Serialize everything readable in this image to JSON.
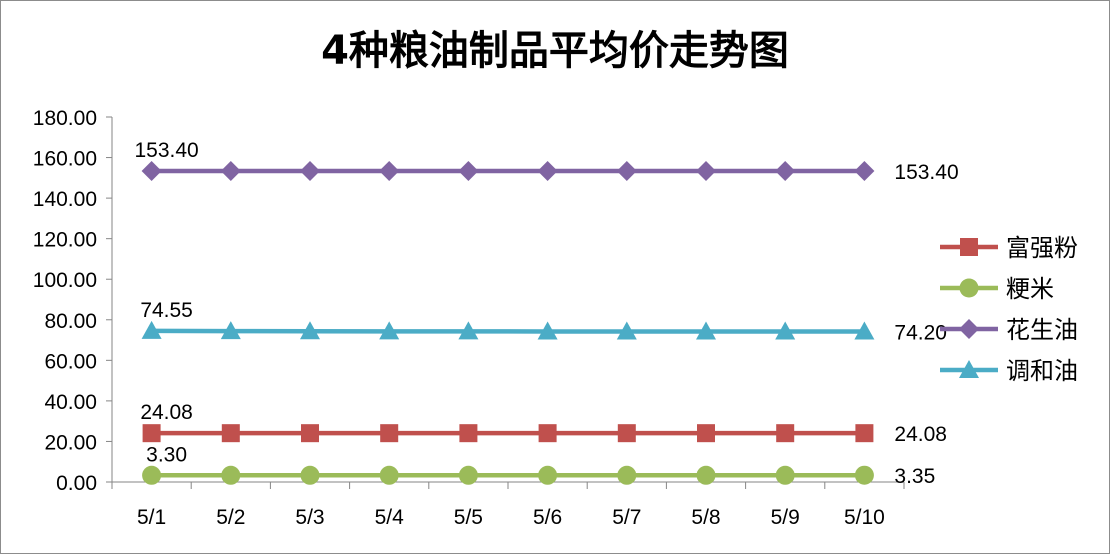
{
  "chart_data": {
    "type": "line",
    "title": "4种粮油制品平均价走势图",
    "categories": [
      "5/1",
      "5/2",
      "5/3",
      "5/4",
      "5/5",
      "5/6",
      "5/7",
      "5/8",
      "5/9",
      "5/10"
    ],
    "ylim": [
      0,
      180
    ],
    "yticks": [
      "0.00",
      "20.00",
      "40.00",
      "60.00",
      "80.00",
      "100.00",
      "120.00",
      "140.00",
      "160.00",
      "180.00"
    ],
    "grid": false,
    "legend_position": "right",
    "series": [
      {
        "name": "富强粉",
        "color": "#c0504d",
        "marker": "square",
        "values": [
          24.08,
          24.08,
          24.08,
          24.08,
          24.08,
          24.08,
          24.08,
          24.08,
          24.08,
          24.08
        ],
        "start_label": "24.08",
        "end_label": "24.08"
      },
      {
        "name": "粳米",
        "color": "#9bbb59",
        "marker": "circle",
        "values": [
          3.3,
          3.3,
          3.3,
          3.3,
          3.3,
          3.3,
          3.3,
          3.3,
          3.3,
          3.35
        ],
        "start_label": "3.30",
        "end_label": "3.35"
      },
      {
        "name": "花生油",
        "color": "#8064a2",
        "marker": "diamond",
        "values": [
          153.4,
          153.4,
          153.4,
          153.4,
          153.4,
          153.4,
          153.4,
          153.4,
          153.4,
          153.4
        ],
        "start_label": "153.40",
        "end_label": "153.40"
      },
      {
        "name": "调和油",
        "color": "#4bacc6",
        "marker": "triangle",
        "values": [
          74.55,
          74.4,
          74.35,
          74.3,
          74.3,
          74.25,
          74.25,
          74.2,
          74.2,
          74.2
        ],
        "start_label": "74.55",
        "end_label": "74.20"
      }
    ]
  }
}
